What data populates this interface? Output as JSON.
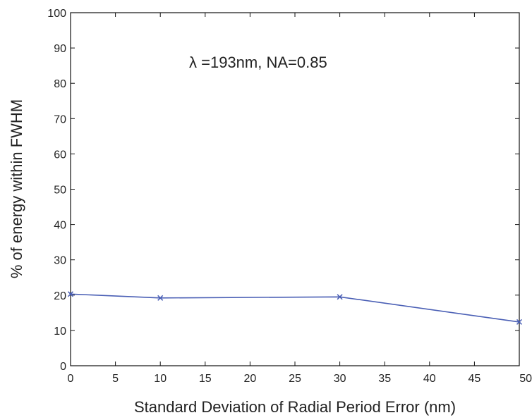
{
  "chart_data": {
    "type": "line",
    "title": "",
    "annotation": "λ =193nm, NA=0.85",
    "xlabel": "Standard Deviation of Radial Period Error (nm)",
    "ylabel": "% of energy within FWHM",
    "xlim": [
      0,
      50
    ],
    "ylim": [
      0,
      100
    ],
    "xticks": [
      0,
      5,
      10,
      15,
      20,
      25,
      30,
      35,
      40,
      45,
      50
    ],
    "yticks": [
      0,
      10,
      20,
      30,
      40,
      50,
      60,
      70,
      80,
      90,
      100
    ],
    "grid": false,
    "legend": "none",
    "series": [
      {
        "color": "#4a5fb5",
        "marker": "x",
        "x": [
          0,
          10,
          30,
          50
        ],
        "y": [
          20.3,
          19.2,
          19.5,
          12.4
        ]
      }
    ]
  }
}
